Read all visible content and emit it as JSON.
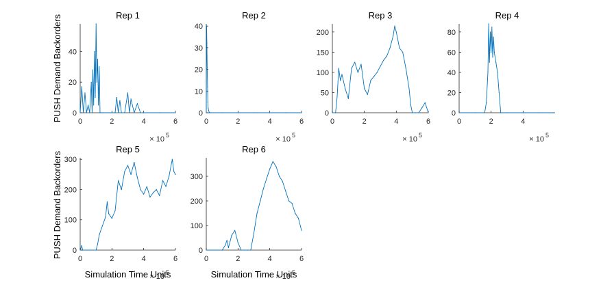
{
  "figure": {
    "ylabel_row1": "PUSH Demand Backorders",
    "ylabel_row2": "PUSH Demand Backorders",
    "xlabel": "Simulation Time Units",
    "x_exponent_base": "× 10",
    "x_exponent_power": "5"
  },
  "colors": {
    "series": "#0072BD",
    "axes": "#262626"
  },
  "chart_data": [
    {
      "type": "line",
      "title": "Rep 1",
      "xlim": [
        0,
        6
      ],
      "ylim": [
        0,
        58
      ],
      "xticks": [
        "0",
        "2",
        "4",
        "6"
      ],
      "yticks": [
        "0",
        "20",
        "40"
      ],
      "yticks_values": [
        0,
        20,
        40
      ],
      "x_scale_note": "×10^5",
      "series": [
        {
          "x": [
            0,
            0.1,
            0.2,
            0.3,
            0.4,
            0.5,
            0.6,
            0.7,
            0.75,
            0.8,
            0.85,
            0.9,
            0.95,
            1.0,
            1.05,
            1.1,
            1.15,
            1.2,
            1.25,
            1.3,
            1.4,
            1.5,
            1.8,
            2.2,
            2.3,
            2.4,
            2.5,
            2.6,
            2.8,
            3.0,
            3.1,
            3.2,
            3.4,
            3.6,
            3.8,
            4.0,
            5.0,
            6.0
          ],
          "y": [
            0,
            17,
            0,
            13,
            0,
            5,
            0,
            20,
            0,
            28,
            5,
            40,
            10,
            58,
            20,
            35,
            5,
            30,
            0,
            0,
            0,
            0,
            0,
            0,
            10,
            0,
            8,
            0,
            0,
            13,
            0,
            9,
            0,
            6,
            0,
            0,
            0,
            0
          ]
        }
      ]
    },
    {
      "type": "line",
      "title": "Rep 2",
      "xlim": [
        0,
        6
      ],
      "ylim": [
        0,
        41
      ],
      "xticks": [
        "0",
        "2",
        "4",
        "6"
      ],
      "yticks": [
        "0",
        "10",
        "20",
        "30",
        "40"
      ],
      "yticks_values": [
        0,
        10,
        20,
        30,
        40
      ],
      "x_scale_note": "×10^5",
      "series": [
        {
          "x": [
            0,
            0.02,
            0.04,
            0.06,
            0.08,
            0.1,
            0.12,
            0.15,
            0.2,
            0.3,
            1.0,
            2.0,
            3.0,
            4.0,
            5.0,
            6.0
          ],
          "y": [
            0,
            40,
            32,
            20,
            12,
            5,
            2,
            1,
            0,
            0,
            0,
            0,
            0,
            0,
            0,
            0
          ]
        }
      ]
    },
    {
      "type": "line",
      "title": "Rep 3",
      "xlim": [
        0,
        6
      ],
      "ylim": [
        0,
        220
      ],
      "xticks": [
        "0",
        "2",
        "4",
        "6"
      ],
      "yticks": [
        "0",
        "50",
        "100",
        "150",
        "200"
      ],
      "yticks_values": [
        0,
        50,
        100,
        150,
        200
      ],
      "x_scale_note": "×10^5",
      "series": [
        {
          "x": [
            0,
            0.2,
            0.3,
            0.4,
            0.5,
            0.6,
            0.8,
            1.0,
            1.2,
            1.4,
            1.6,
            1.8,
            2.0,
            2.2,
            2.4,
            2.6,
            2.8,
            3.0,
            3.2,
            3.4,
            3.6,
            3.8,
            3.9,
            4.0,
            4.2,
            4.4,
            4.6,
            4.8,
            4.9,
            5.0,
            5.2,
            5.4,
            5.6,
            5.8,
            6.0
          ],
          "y": [
            0,
            0,
            40,
            110,
            80,
            95,
            60,
            35,
            110,
            125,
            100,
            120,
            60,
            45,
            80,
            90,
            100,
            115,
            130,
            140,
            160,
            190,
            215,
            200,
            160,
            150,
            110,
            60,
            20,
            0,
            0,
            0,
            12,
            25,
            0
          ]
        }
      ]
    },
    {
      "type": "line",
      "title": "Rep 4",
      "xlim": [
        0,
        6
      ],
      "ylim": [
        0,
        88
      ],
      "xticks": [
        "0",
        "2",
        "4"
      ],
      "yticks": [
        "0",
        "20",
        "40",
        "60",
        "80"
      ],
      "yticks_values": [
        0,
        20,
        40,
        60,
        80
      ],
      "x_scale_note": "×10^5",
      "series": [
        {
          "x": [
            0,
            1.0,
            1.6,
            1.7,
            1.8,
            1.85,
            1.9,
            1.95,
            2.0,
            2.05,
            2.1,
            2.15,
            2.2,
            2.3,
            2.4,
            2.5,
            2.6,
            2.7,
            3.0,
            4.0,
            5.0,
            5.9
          ],
          "y": [
            0,
            0,
            0,
            10,
            40,
            88,
            50,
            80,
            60,
            85,
            55,
            75,
            60,
            50,
            40,
            20,
            0,
            0,
            0,
            0,
            0,
            0
          ]
        }
      ]
    },
    {
      "type": "line",
      "title": "Rep 5",
      "xlim": [
        0,
        6
      ],
      "ylim": [
        0,
        305
      ],
      "xticks": [
        "0",
        "2",
        "4",
        "6"
      ],
      "yticks": [
        "0",
        "100",
        "200",
        "300"
      ],
      "yticks_values": [
        0,
        100,
        200,
        300
      ],
      "x_scale_note": "×10^5",
      "series": [
        {
          "x": [
            0,
            0.1,
            0.15,
            0.2,
            1.0,
            1.1,
            1.2,
            1.4,
            1.6,
            1.7,
            1.8,
            2.0,
            2.2,
            2.4,
            2.6,
            2.8,
            3.0,
            3.2,
            3.4,
            3.6,
            3.8,
            4.0,
            4.2,
            4.4,
            4.6,
            4.8,
            5.0,
            5.2,
            5.4,
            5.6,
            5.8,
            5.9,
            6.0
          ],
          "y": [
            0,
            15,
            0,
            0,
            0,
            20,
            50,
            80,
            110,
            160,
            120,
            105,
            130,
            230,
            200,
            260,
            280,
            250,
            290,
            240,
            200,
            185,
            210,
            175,
            190,
            200,
            180,
            230,
            210,
            245,
            300,
            260,
            250
          ]
        }
      ]
    },
    {
      "type": "line",
      "title": "Rep 6",
      "xlim": [
        0,
        6
      ],
      "ylim": [
        0,
        375
      ],
      "xticks": [
        "0",
        "2",
        "4",
        "6"
      ],
      "yticks": [
        "0",
        "100",
        "200",
        "300"
      ],
      "yticks_values": [
        0,
        100,
        200,
        300
      ],
      "x_scale_note": "×10^5",
      "series": [
        {
          "x": [
            0,
            1.0,
            1.2,
            1.3,
            1.4,
            1.6,
            1.8,
            2.0,
            2.2,
            2.4,
            2.6,
            2.8,
            3.0,
            3.2,
            3.4,
            3.6,
            3.8,
            4.0,
            4.2,
            4.4,
            4.6,
            4.8,
            5.0,
            5.2,
            5.4,
            5.6,
            5.8,
            6.0
          ],
          "y": [
            0,
            0,
            20,
            40,
            10,
            60,
            80,
            30,
            0,
            0,
            0,
            0,
            70,
            150,
            200,
            250,
            290,
            330,
            360,
            340,
            300,
            280,
            240,
            200,
            190,
            150,
            130,
            80
          ]
        }
      ]
    }
  ]
}
